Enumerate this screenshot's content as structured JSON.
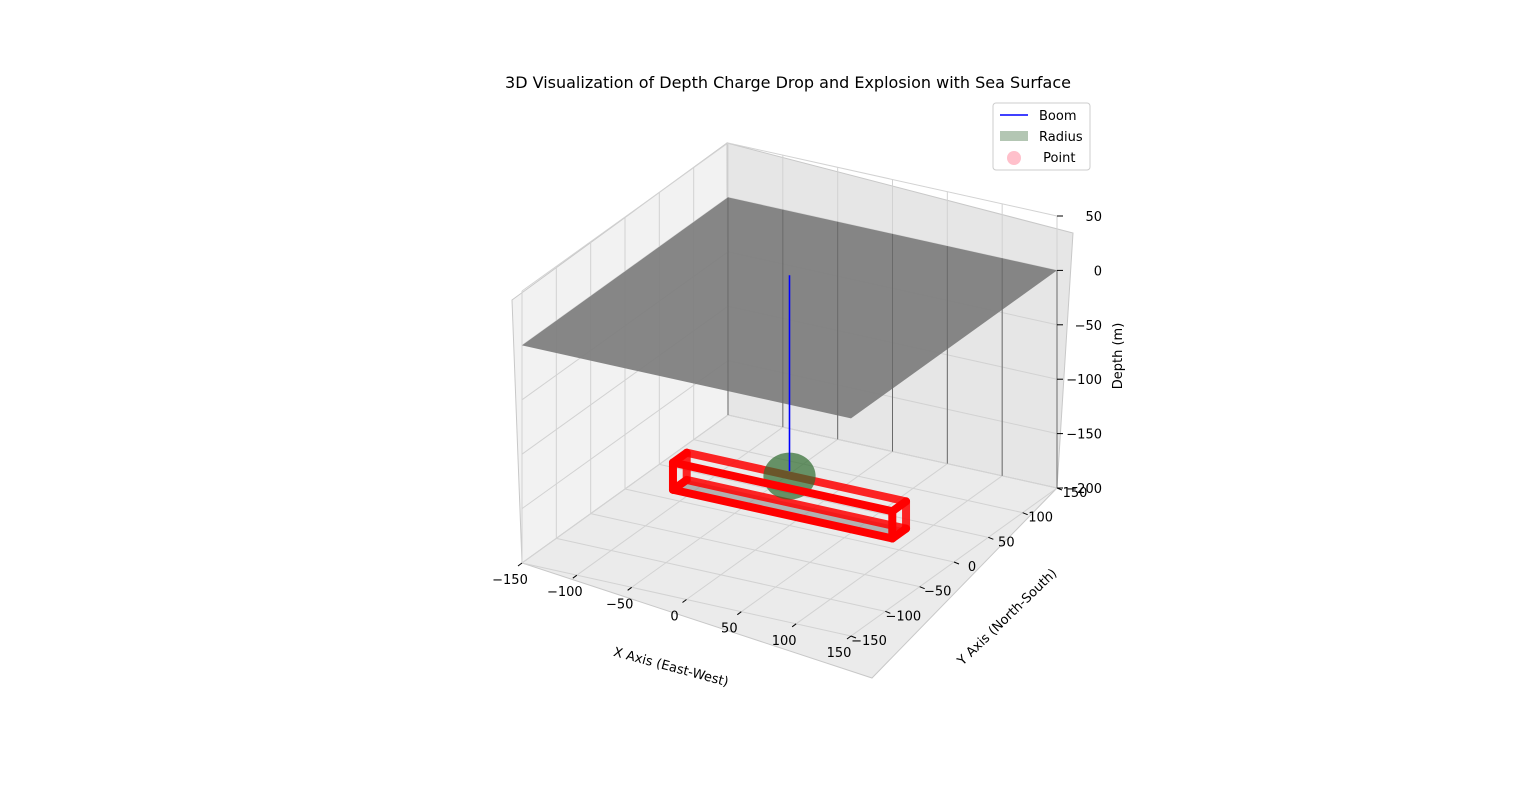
{
  "chart_data": {
    "type": "3d-scatter",
    "title": "3D Visualization of Depth Charge Drop and Explosion with Sea Surface",
    "xlabel": "X Axis (East-West)",
    "ylabel": "Y Axis (North-South)",
    "zlabel": "Depth (m)",
    "xlim": [
      -150,
      150
    ],
    "ylim": [
      -150,
      150
    ],
    "zlim": [
      -200,
      50
    ],
    "x_ticks": [
      -150,
      -100,
      -50,
      0,
      50,
      100,
      150
    ],
    "y_ticks": [
      -150,
      -100,
      -50,
      0,
      50,
      100,
      150
    ],
    "z_ticks": [
      -200,
      -150,
      -100,
      -50,
      0,
      50
    ],
    "x_tick_labels": [
      "−150",
      "−100",
      "−50",
      "0",
      "50",
      "100",
      "150"
    ],
    "y_tick_labels": [
      "−150",
      "−100",
      "−50",
      "0",
      "50",
      "100",
      "150"
    ],
    "z_tick_labels": [
      "−200",
      "−150",
      "−100",
      "−50",
      "0",
      "50"
    ],
    "grid": true,
    "legend_position": "top-right",
    "sea_surface": {
      "z": 0,
      "x_range": [
        -150,
        150
      ],
      "y_range": [
        -150,
        150
      ],
      "color": "#808080"
    },
    "boom_line": {
      "x": 0,
      "y": 0,
      "z_from": 0,
      "z_to": -150,
      "color": "#0000ff"
    },
    "explosion_sphere": {
      "center": [
        0,
        0,
        -150
      ],
      "radius": 15,
      "color": "#2e6b2e"
    },
    "target_box": {
      "x_range": [
        -100,
        100
      ],
      "y_range": [
        -10,
        10
      ],
      "z_range": [
        -185,
        -160
      ],
      "color": "#ff0000"
    },
    "legend": [
      {
        "label": "Boom",
        "kind": "line",
        "color": "#0000ff"
      },
      {
        "label": "Radius",
        "kind": "patch",
        "color": "#b3c6b3"
      },
      {
        "label": " Point",
        "kind": "marker",
        "color": "#ffc0cb"
      }
    ]
  }
}
